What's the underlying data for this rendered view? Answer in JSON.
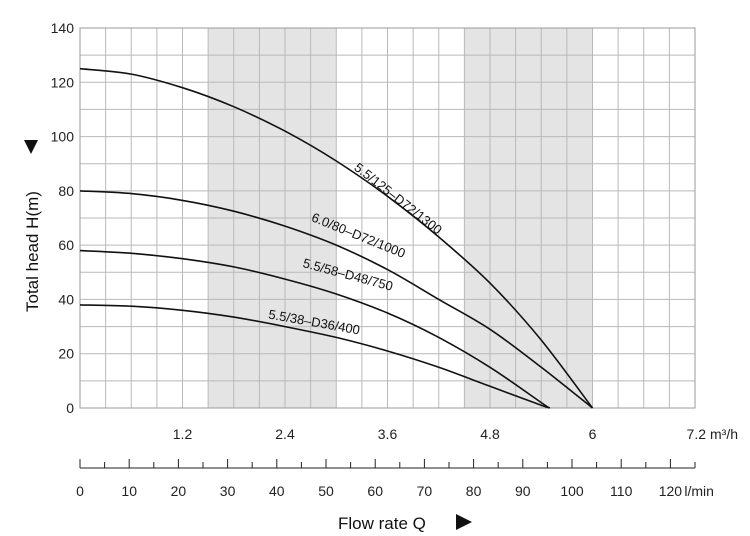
{
  "chart_data": {
    "type": "line",
    "title": "",
    "xlabel": "Flow rate Q",
    "ylabel": "Total head H(m)",
    "x_unit_top": "m³/h",
    "x_unit_bottom": "l/min",
    "xlim": [
      0,
      7.2
    ],
    "ylim": [
      0,
      140
    ],
    "x_ticks_top": [
      "1.2",
      "2.4",
      "3.6",
      "4.8",
      "6",
      "7.2"
    ],
    "x_ticks_bottom": [
      "0",
      "10",
      "20",
      "30",
      "40",
      "50",
      "60",
      "70",
      "80",
      "90",
      "100",
      "110",
      "120"
    ],
    "y_ticks": [
      "0",
      "20",
      "40",
      "60",
      "80",
      "100",
      "120",
      "140"
    ],
    "grid": true,
    "shaded_x_bands": [
      [
        1.5,
        3.0
      ],
      [
        4.5,
        6.0
      ]
    ],
    "series": [
      {
        "name": "5.5/125–D72/1300",
        "x": [
          0,
          0.6,
          1.2,
          1.8,
          2.4,
          3.0,
          3.6,
          4.2,
          4.8,
          5.4,
          6.0
        ],
        "y": [
          125,
          123,
          118,
          111,
          102,
          91,
          78,
          63,
          46,
          25,
          0
        ]
      },
      {
        "name": "6.0/80–D72/1000",
        "x": [
          0,
          0.6,
          1.2,
          1.8,
          2.4,
          3.0,
          3.6,
          4.2,
          4.8,
          5.4,
          6.0
        ],
        "y": [
          80,
          79,
          76.5,
          72.5,
          67,
          60,
          51,
          40,
          29,
          15,
          0
        ]
      },
      {
        "name": "5.5/58–D48/750",
        "x": [
          0,
          0.6,
          1.2,
          1.8,
          2.4,
          3.0,
          3.6,
          4.2,
          4.8,
          5.4,
          5.5
        ],
        "y": [
          58,
          57,
          55,
          52,
          47.5,
          42,
          35,
          26,
          15,
          2,
          0
        ]
      },
      {
        "name": "5.5/38–D36/400",
        "x": [
          0,
          0.6,
          1.2,
          1.8,
          2.4,
          3.0,
          3.6,
          4.2,
          4.8,
          5.4,
          5.5
        ],
        "y": [
          38,
          37.5,
          36,
          33.5,
          30,
          26,
          21,
          15,
          8,
          1,
          0
        ]
      }
    ],
    "label_angles": [
      38,
      22,
      15,
      10
    ],
    "label_anchor_x": [
      3.2,
      2.7,
      2.6,
      2.2
    ],
    "label_anchor_y": [
      88,
      69,
      52,
      33
    ]
  }
}
